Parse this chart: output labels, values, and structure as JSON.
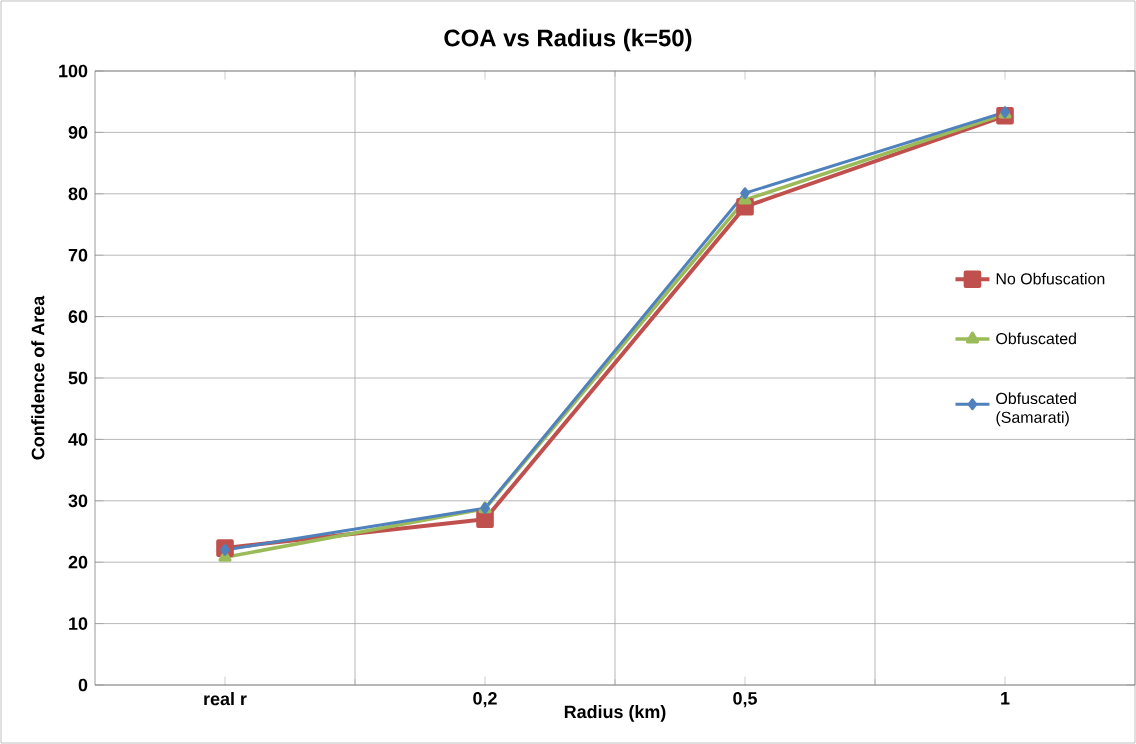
{
  "chart_data": {
    "type": "line",
    "title": "COA vs Radius (k=50)",
    "xlabel": "Radius (km)",
    "ylabel": "Confidence of Area",
    "categories": [
      "real r",
      "0,2",
      "0,5",
      "1"
    ],
    "series": [
      {
        "name": "No Obfuscation",
        "color": "#c0504d",
        "marker": "square",
        "values": [
          22.3,
          27.0,
          77.9,
          92.7
        ]
      },
      {
        "name": "Obfuscated",
        "color": "#9bbb59",
        "marker": "triangle",
        "values": [
          20.8,
          28.7,
          79.0,
          93.0
        ]
      },
      {
        "name": "Obfuscated (Samarati)",
        "color": "#4f81bd",
        "marker": "diamond",
        "values": [
          22.0,
          28.8,
          80.1,
          93.3
        ]
      }
    ],
    "ylim": [
      0,
      100
    ],
    "yticks": [
      0,
      10,
      20,
      30,
      40,
      50,
      60,
      70,
      80,
      90,
      100
    ],
    "grid": true,
    "legend": "right"
  }
}
